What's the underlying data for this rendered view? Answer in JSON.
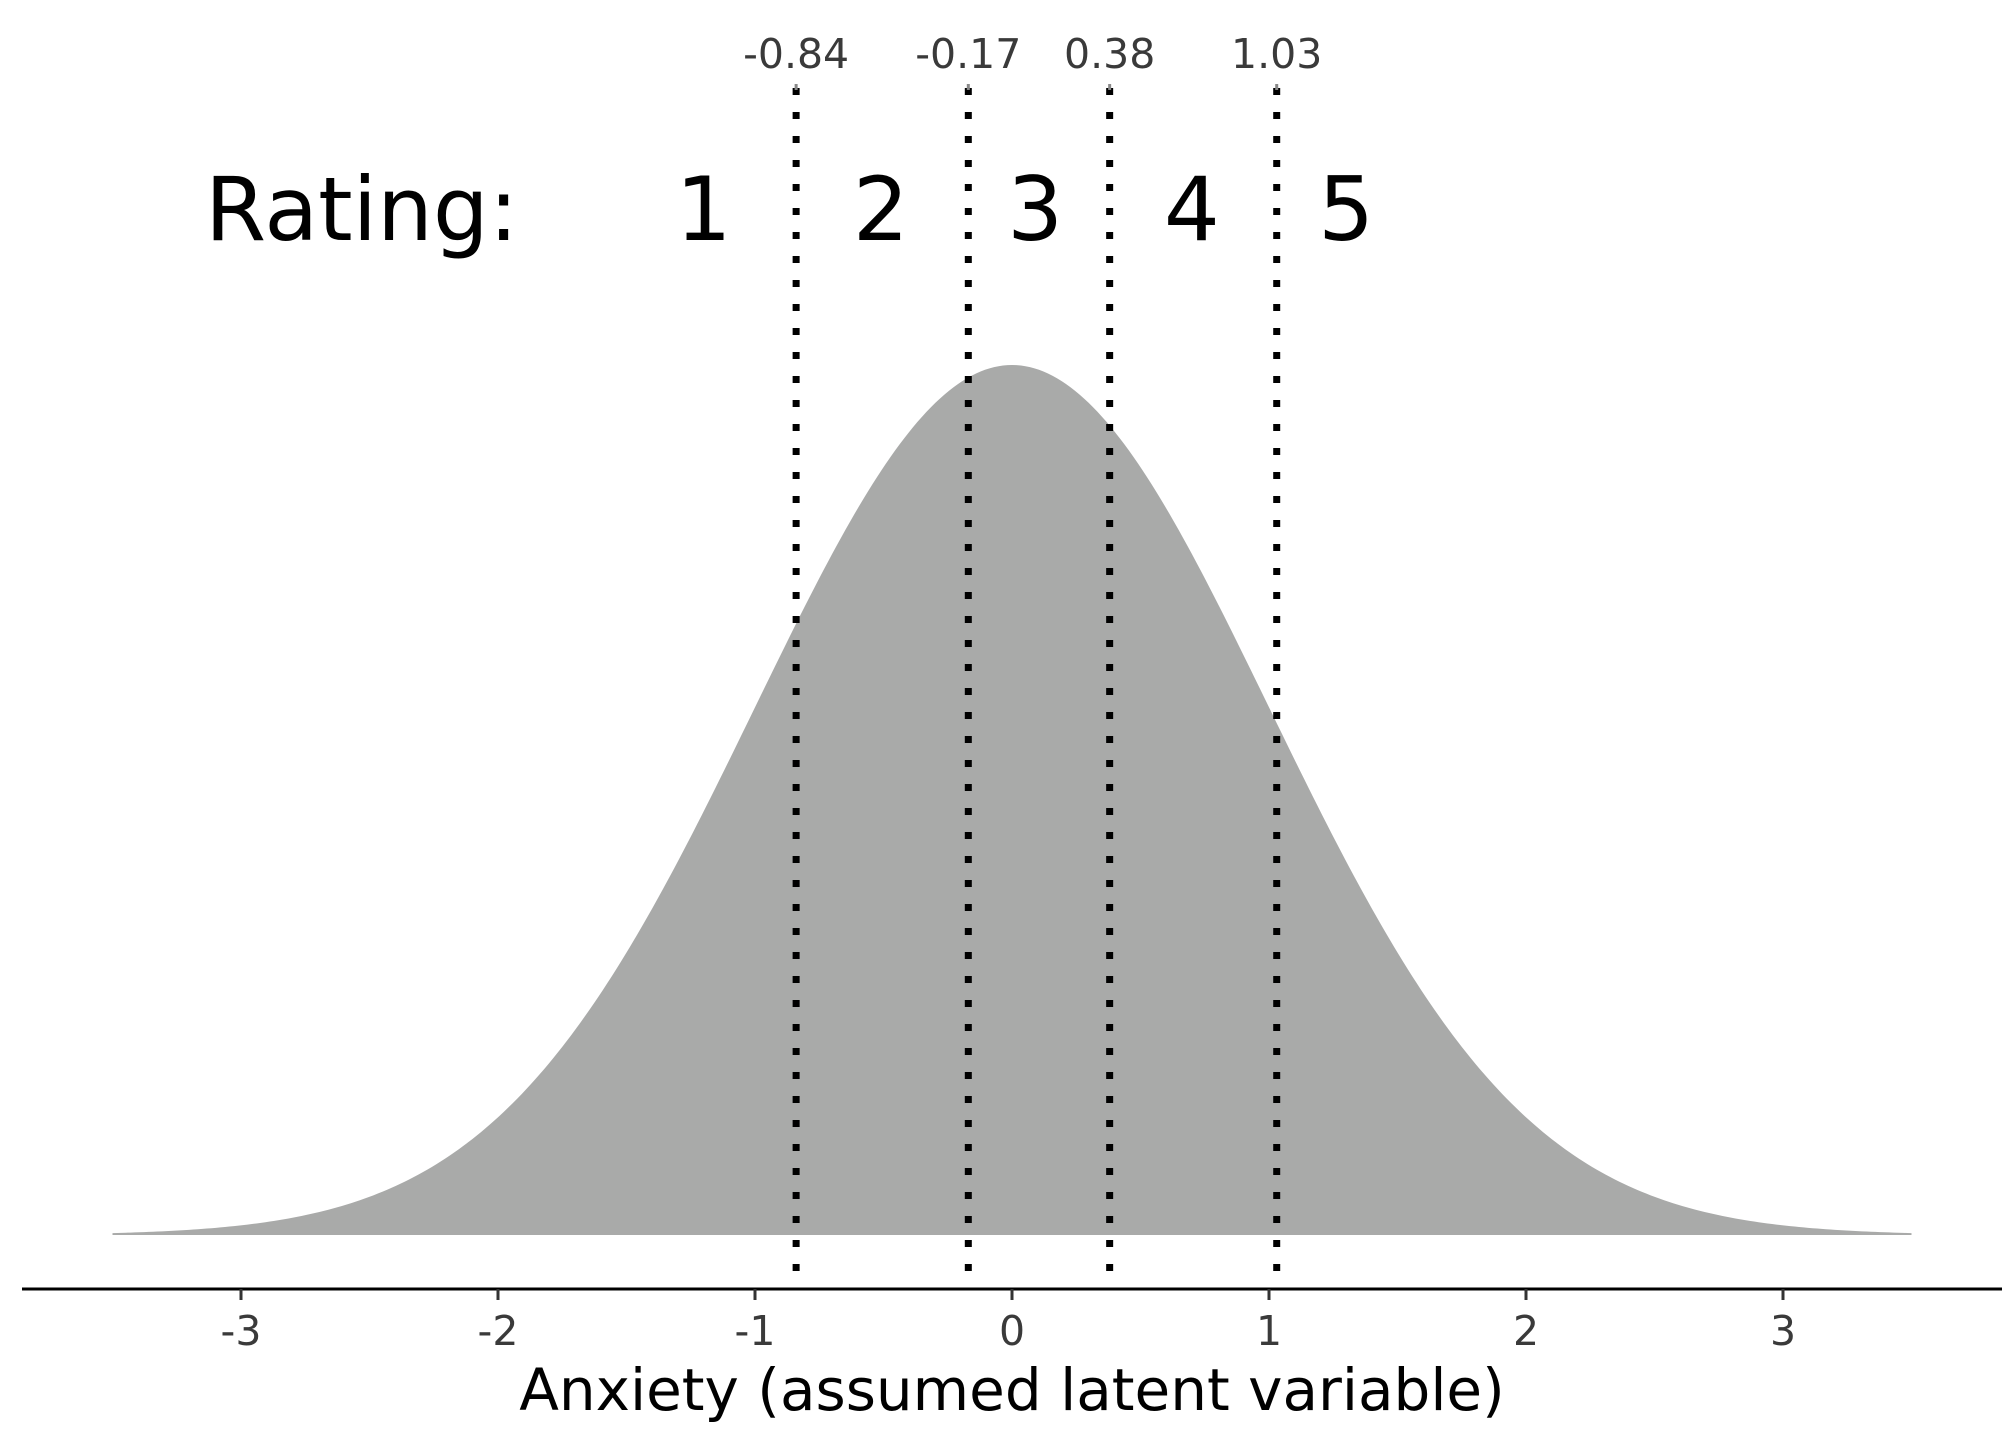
{
  "chart_data": {
    "type": "area",
    "distribution": "standard normal density",
    "x_range": [
      -3.5,
      3.5
    ],
    "xlim": [
      -3.85,
      3.85
    ],
    "xlabel": "Anxiety (assumed latent variable)",
    "ylabel": "",
    "title": "",
    "x_ticks": [
      {
        "value": -3,
        "label": "-3"
      },
      {
        "value": -2,
        "label": "-2"
      },
      {
        "value": -1,
        "label": "-1"
      },
      {
        "value": 0,
        "label": "0"
      },
      {
        "value": 1,
        "label": "1"
      },
      {
        "value": 2,
        "label": "2"
      },
      {
        "value": 3,
        "label": "3"
      }
    ],
    "thresholds": [
      {
        "value": -0.84,
        "label": "-0.84"
      },
      {
        "value": -0.17,
        "label": "-0.17"
      },
      {
        "value": 0.38,
        "label": "0.38"
      },
      {
        "value": 1.03,
        "label": "1.03"
      }
    ],
    "rating_prefix": "Rating:",
    "ratings": [
      {
        "label": "1",
        "x": -1.2
      },
      {
        "label": "2",
        "x": -0.51
      },
      {
        "label": "3",
        "x": 0.09
      },
      {
        "label": "4",
        "x": 0.7
      },
      {
        "label": "5",
        "x": 1.3
      }
    ],
    "fill_color": "#a9aaa9",
    "line_style": "dotted",
    "grid": false,
    "legend": "none"
  }
}
